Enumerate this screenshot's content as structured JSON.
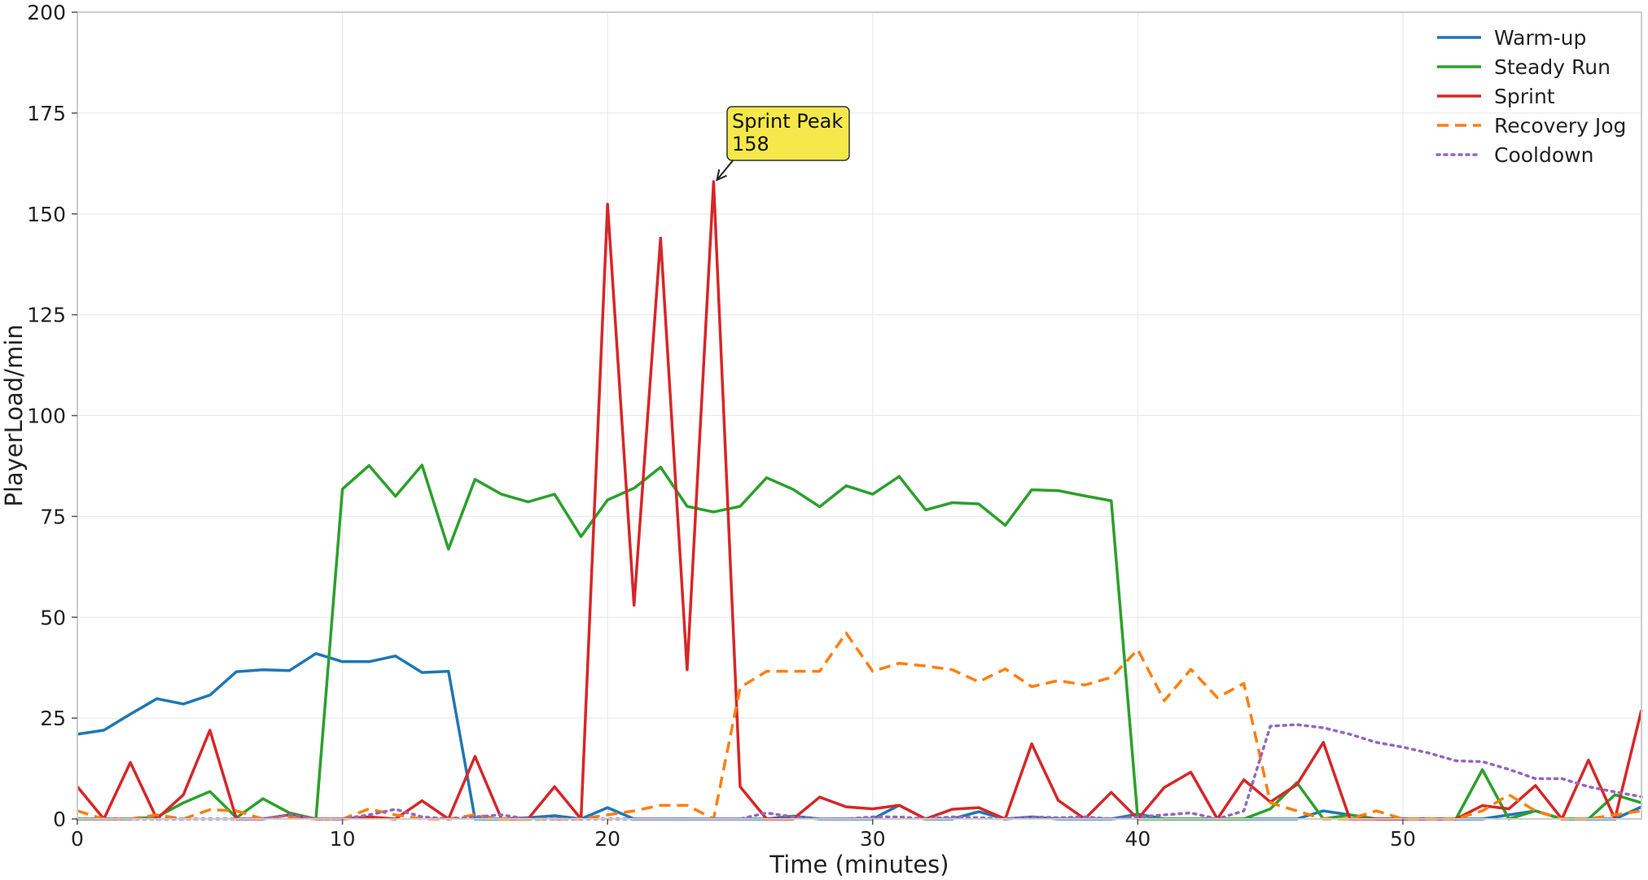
{
  "chart_data": {
    "type": "line",
    "title": "",
    "xlabel": "Time (minutes)",
    "ylabel": "PlayerLoad/min",
    "xlim": [
      0,
      59
    ],
    "ylim": [
      0,
      200
    ],
    "x_ticks": [
      0,
      10,
      20,
      30,
      40,
      50
    ],
    "y_ticks": [
      0,
      25,
      50,
      75,
      100,
      125,
      150,
      175,
      200
    ],
    "grid": true,
    "legend_position": "top-right",
    "x": [
      0,
      1,
      2,
      3,
      4,
      5,
      6,
      7,
      8,
      9,
      10,
      11,
      12,
      13,
      14,
      15,
      16,
      17,
      18,
      19,
      20,
      21,
      22,
      23,
      24,
      25,
      26,
      27,
      28,
      29,
      30,
      31,
      32,
      33,
      34,
      35,
      36,
      37,
      38,
      39,
      40,
      41,
      42,
      43,
      44,
      45,
      46,
      47,
      48,
      49,
      50,
      51,
      52,
      53,
      54,
      55,
      56,
      57,
      58,
      59
    ],
    "series": [
      {
        "name": "Warm-up",
        "color": "#1f77b4",
        "style": "solid",
        "values": [
          21,
          22,
          26,
          29.8,
          28.5,
          30.7,
          36.5,
          37,
          36.8,
          41,
          39,
          39,
          40.4,
          36.3,
          36.6,
          0,
          0,
          0.3,
          0.8,
          0,
          2.8,
          0,
          0,
          0,
          0,
          0,
          0,
          0.7,
          0,
          0,
          0,
          3.4,
          0,
          0,
          1.8,
          0,
          0.5,
          0,
          0,
          0,
          1.2,
          0,
          0,
          0,
          0,
          0,
          0,
          2,
          1,
          0,
          0,
          0,
          0,
          0,
          1,
          2,
          0,
          0,
          0,
          3
        ]
      },
      {
        "name": "Steady Run",
        "color": "#2ca02c",
        "style": "solid",
        "values": [
          0,
          0,
          0,
          0.5,
          4,
          6.8,
          0.3,
          5,
          1.5,
          0,
          81.8,
          87.6,
          80,
          87.7,
          66.9,
          84.2,
          80.5,
          78.6,
          80.5,
          70,
          79.1,
          82,
          87.2,
          77.5,
          76.1,
          77.5,
          84.6,
          81.7,
          77.4,
          82.6,
          80.5,
          84.9,
          76.6,
          78.4,
          78.1,
          72.8,
          81.6,
          81.4,
          80.1,
          78.9,
          0,
          0,
          0,
          0,
          0,
          2.5,
          9,
          0,
          1,
          0,
          0,
          0,
          0,
          12.2,
          0,
          2,
          0,
          0,
          6,
          4
        ]
      },
      {
        "name": "Sprint",
        "color": "#d62728",
        "style": "solid",
        "values": [
          8,
          0,
          14,
          0,
          6,
          22,
          0,
          0,
          1,
          0,
          0,
          0.5,
          0,
          4.5,
          0,
          15.5,
          0,
          0,
          8,
          0,
          152.4,
          53,
          144,
          37,
          158,
          8,
          0,
          0,
          5.4,
          3,
          2.5,
          3.4,
          0,
          2.4,
          2.8,
          0,
          18.6,
          4.6,
          0,
          6.6,
          0,
          7.8,
          11.6,
          0,
          9.7,
          4.2,
          8.5,
          19,
          0,
          0,
          0,
          0,
          0,
          3.3,
          2.5,
          8.3,
          0,
          14.6,
          0,
          27
        ]
      },
      {
        "name": "Recovery Jog",
        "color": "#ff7f0e",
        "style": "dashed",
        "values": [
          2,
          0,
          0,
          1,
          0,
          2.3,
          2,
          0,
          0.5,
          0,
          0,
          2.5,
          1,
          0,
          0,
          1,
          0,
          0,
          0,
          0,
          1,
          2,
          3.4,
          3.4,
          0,
          32.6,
          36.6,
          36.6,
          36.6,
          46.1,
          36.6,
          38.6,
          37.9,
          37,
          34,
          37.2,
          32.8,
          34.3,
          33.2,
          35.1,
          42,
          29.3,
          37.1,
          30.1,
          33.6,
          4,
          2,
          0,
          0,
          2,
          0,
          0,
          0,
          2,
          6,
          2,
          0,
          0,
          1,
          2
        ]
      },
      {
        "name": "Cooldown",
        "color": "#9467bd",
        "style": "dotted",
        "values": [
          0,
          0,
          0,
          0,
          0,
          0,
          0,
          0,
          1,
          0,
          0,
          1,
          2.4,
          0.5,
          0,
          0.5,
          1,
          0,
          0,
          0,
          0,
          0,
          0,
          0,
          0,
          0,
          1.5,
          0.5,
          0,
          0,
          0.5,
          0.5,
          0,
          0.5,
          0.3,
          0,
          0.5,
          0.3,
          0.5,
          0,
          0.5,
          1,
          1.5,
          0,
          2,
          23,
          23.4,
          22.6,
          21,
          19,
          17.8,
          16.3,
          14.4,
          14.2,
          12.3,
          10,
          10,
          8,
          6.7,
          5.5
        ]
      }
    ],
    "annotations": [
      {
        "text_line1": "Sprint Peak",
        "text_line2": "158",
        "x": 24,
        "y": 158,
        "series": "Sprint",
        "box_color": "#f5e84a"
      }
    ]
  }
}
